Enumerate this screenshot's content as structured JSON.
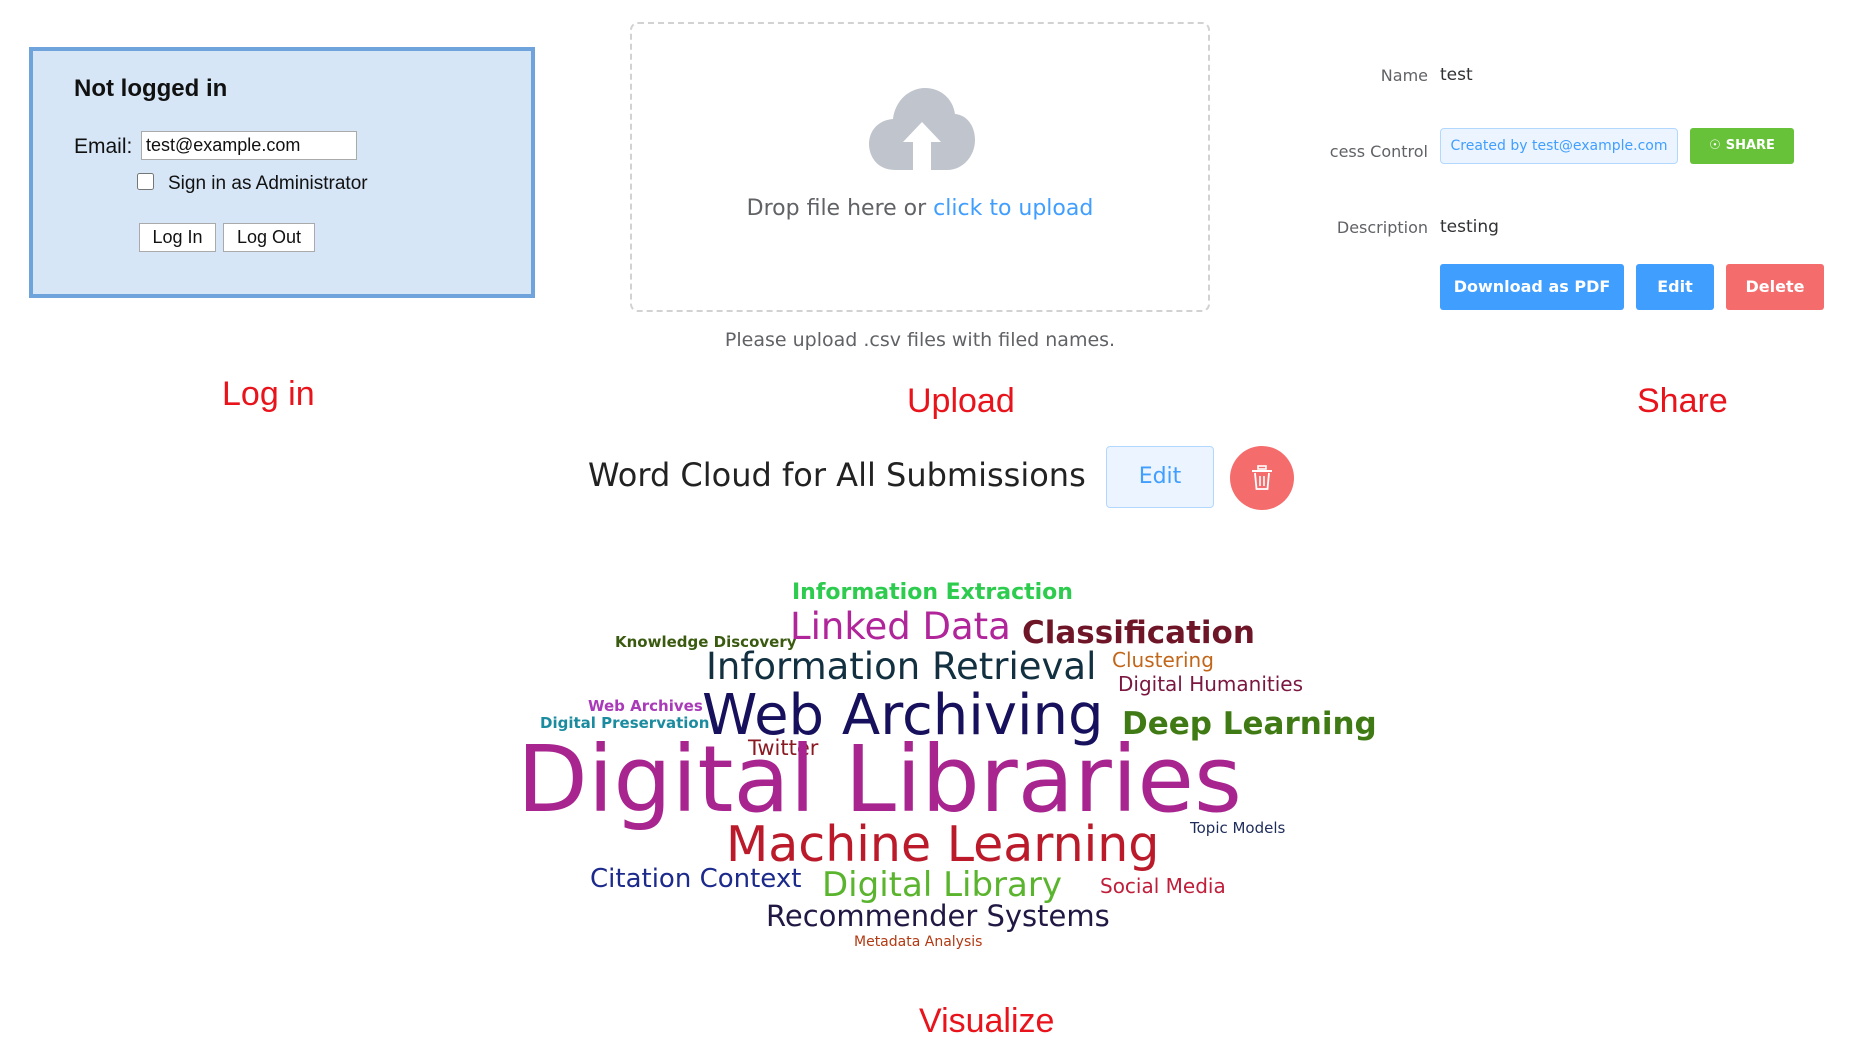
{
  "login": {
    "title": "Not logged in",
    "email_label": "Email:",
    "email_value": "test@example.com",
    "admin_label": "Sign in as Administrator",
    "admin_checked": false,
    "login_button": "Log In",
    "logout_button": "Log Out"
  },
  "upload": {
    "icon": "upload-cloud-icon",
    "drop_text": "Drop file here or",
    "drop_link": "click to upload",
    "tip": "Please upload .csv files with filed names."
  },
  "share": {
    "name_label": "Name",
    "name_value": "test",
    "access_label": "cess Control",
    "access_tag": "Created by test@example.com",
    "share_button": "SHARE",
    "description_label": "Description",
    "description_value": "testing",
    "pdf_button": "Download as PDF",
    "edit_button": "Edit",
    "delete_button": "Delete"
  },
  "captions": {
    "login": "Log in",
    "upload": "Upload",
    "share": "Share",
    "visualize": "Visualize"
  },
  "wordcloud": {
    "title": "Word Cloud for All Submissions",
    "edit_button": "Edit",
    "delete_icon": "trash-icon",
    "words": [
      {
        "text": "Information Extraction",
        "color": "#2ecc4e"
      },
      {
        "text": "Knowledge Discovery",
        "color": "#3a5a10"
      },
      {
        "text": "Linked Data",
        "color": "#b0259a"
      },
      {
        "text": "Classification",
        "color": "#6e1528"
      },
      {
        "text": "Information Retrieval",
        "color": "#123040"
      },
      {
        "text": "Clustering",
        "color": "#c2661a"
      },
      {
        "text": "Digital Humanities",
        "color": "#7a1640"
      },
      {
        "text": "Web Archives",
        "color": "#a93ab8"
      },
      {
        "text": "Digital Preservation",
        "color": "#1b8ca0"
      },
      {
        "text": "Web Archiving",
        "color": "#17105c"
      },
      {
        "text": "Deep Learning",
        "color": "#3f7a14"
      },
      {
        "text": "Twitter",
        "color": "#8a1a22"
      },
      {
        "text": "Digital Libraries",
        "color": "#a8258f"
      },
      {
        "text": "Topic Models",
        "color": "#1e2c5a"
      },
      {
        "text": "Machine Learning",
        "color": "#bb1a2a"
      },
      {
        "text": "Citation Context",
        "color": "#1c2a8c"
      },
      {
        "text": "Digital Library",
        "color": "#5ab42e"
      },
      {
        "text": "Social Media",
        "color": "#c01e3a"
      },
      {
        "text": "Recommender Systems",
        "color": "#221844"
      },
      {
        "text": "Metadata Analysis",
        "color": "#b23a12"
      }
    ]
  }
}
